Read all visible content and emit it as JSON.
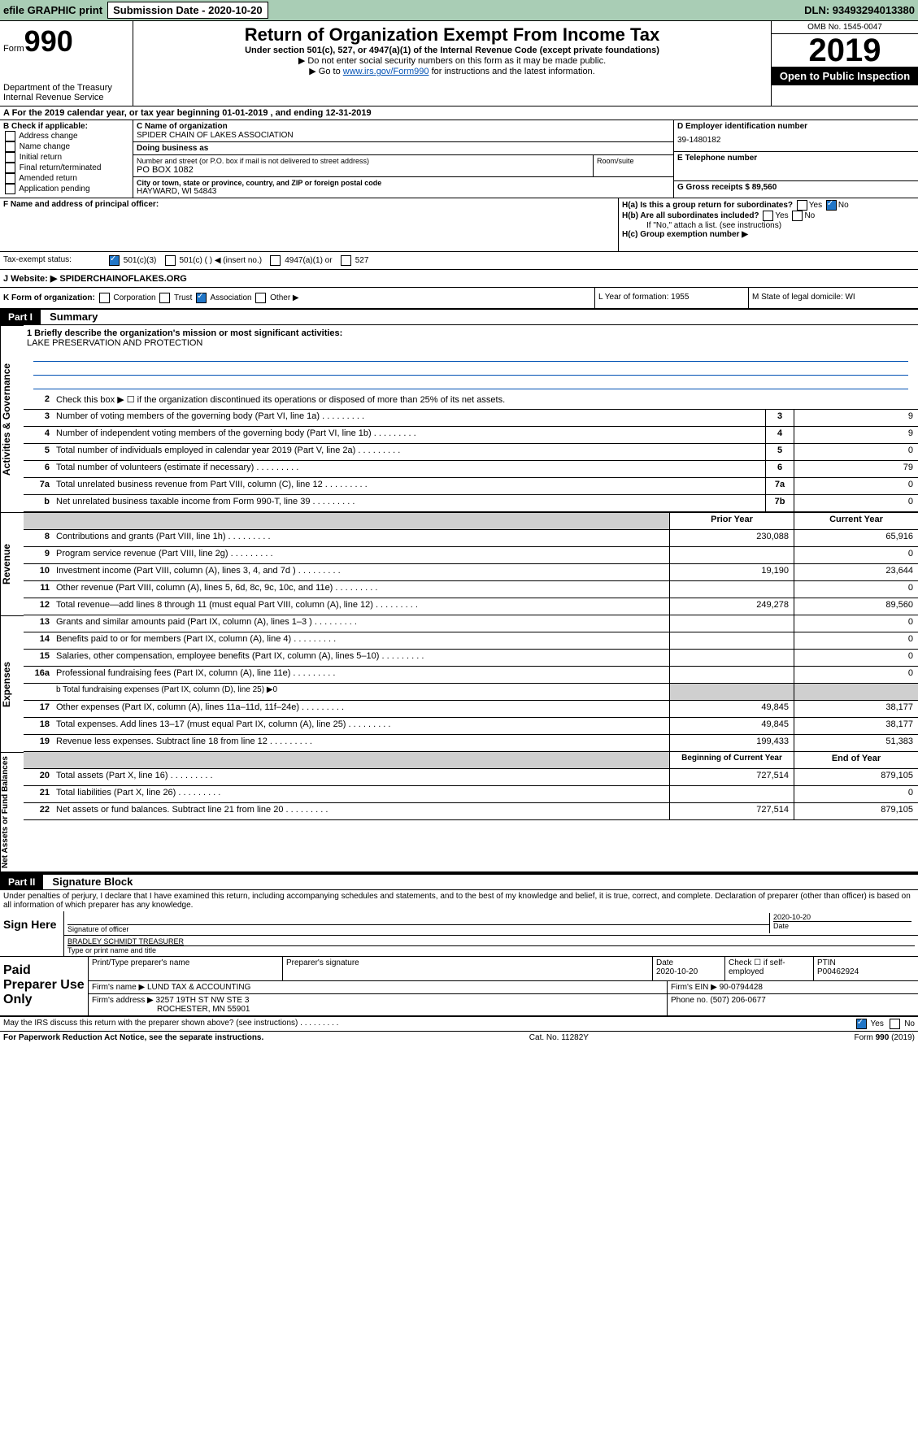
{
  "topbar": {
    "efile": "efile GRAPHIC print",
    "submission_label": "Submission Date - 2020-10-20",
    "dln_label": "DLN: 93493294013380"
  },
  "header": {
    "form_small": "Form",
    "form_number": "990",
    "dept1": "Department of the Treasury",
    "dept2": "Internal Revenue Service",
    "title": "Return of Organization Exempt From Income Tax",
    "subtitle": "Under section 501(c), 527, or 4947(a)(1) of the Internal Revenue Code (except private foundations)",
    "note1": "▶ Do not enter social security numbers on this form as it may be made public.",
    "note2_pre": "▶ Go to ",
    "note2_link": "www.irs.gov/Form990",
    "note2_post": " for instructions and the latest information.",
    "omb": "OMB No. 1545-0047",
    "year": "2019",
    "open": "Open to Public Inspection"
  },
  "row_a": "A For the 2019 calendar year, or tax year beginning 01-01-2019    , and ending 12-31-2019",
  "col_b": {
    "hdr": "B Check if applicable:",
    "items": [
      "Address change",
      "Name change",
      "Initial return",
      "Final return/terminated",
      "Amended return",
      "Application pending"
    ]
  },
  "col_c": {
    "name_lbl": "C Name of organization",
    "name_val": "SPIDER CHAIN OF LAKES ASSOCIATION",
    "dba_lbl": "Doing business as",
    "dba_val": "",
    "addr_lbl": "Number and street (or P.O. box if mail is not delivered to street address)",
    "room_lbl": "Room/suite",
    "addr_val": "PO BOX 1082",
    "city_lbl": "City or town, state or province, country, and ZIP or foreign postal code",
    "city_val": "HAYWARD, WI  54843"
  },
  "col_de": {
    "d_lbl": "D Employer identification number",
    "d_val": "39-1480182",
    "e_lbl": "E Telephone number",
    "e_val": "",
    "g_lbl": "G Gross receipts $ 89,560"
  },
  "section_f": {
    "f_lbl": "F  Name and address of principal officer:",
    "f_val": "",
    "ha": "H(a)  Is this a group return for subordinates?",
    "hb": "H(b)  Are all subordinates included?",
    "hb_note": "If \"No,\" attach a list. (see instructions)",
    "hc": "H(c)  Group exemption number ▶",
    "yes": "Yes",
    "no": "No"
  },
  "row_i": {
    "lbl": "Tax-exempt status:",
    "opt1": "501(c)(3)",
    "opt2": "501(c) (   ) ◀ (insert no.)",
    "opt3": "4947(a)(1) or",
    "opt4": "527"
  },
  "row_j": {
    "lbl": "J   Website: ▶",
    "val": "  SPIDERCHAINOFLAKES.ORG"
  },
  "row_k": {
    "left_lbl": "K Form of organization:",
    "corp": "Corporation",
    "trust": "Trust",
    "assoc": "Association",
    "other": "Other ▶",
    "l_lbl": "L Year of formation: 1955",
    "m_lbl": "M State of legal domicile: WI"
  },
  "part1": {
    "hdr": "Part I",
    "title": "Summary",
    "side_gov": "Activities & Governance",
    "side_rev": "Revenue",
    "side_exp": "Expenses",
    "side_net": "Net Assets or Fund Balances",
    "l1_lbl": "1  Briefly describe the organization's mission or most significant activities:",
    "l1_val": "LAKE PRESERVATION AND PROTECTION",
    "l2": "Check this box ▶ ☐  if the organization discontinued its operations or disposed of more than 25% of its net assets.",
    "lines_gov": [
      {
        "num": "3",
        "desc": "Number of voting members of the governing body (Part VI, line 1a)",
        "box": "3",
        "val": "9"
      },
      {
        "num": "4",
        "desc": "Number of independent voting members of the governing body (Part VI, line 1b)",
        "box": "4",
        "val": "9"
      },
      {
        "num": "5",
        "desc": "Total number of individuals employed in calendar year 2019 (Part V, line 2a)",
        "box": "5",
        "val": "0"
      },
      {
        "num": "6",
        "desc": "Total number of volunteers (estimate if necessary)",
        "box": "6",
        "val": "79"
      },
      {
        "num": "7a",
        "desc": "Total unrelated business revenue from Part VIII, column (C), line 12",
        "box": "7a",
        "val": "0"
      },
      {
        "num": "b",
        "desc": "Net unrelated business taxable income from Form 990-T, line 39",
        "box": "7b",
        "val": "0"
      }
    ],
    "hdr_prior": "Prior Year",
    "hdr_curr": "Current Year",
    "lines_rev": [
      {
        "num": "8",
        "desc": "Contributions and grants (Part VIII, line 1h)",
        "prior": "230,088",
        "curr": "65,916"
      },
      {
        "num": "9",
        "desc": "Program service revenue (Part VIII, line 2g)",
        "prior": "",
        "curr": "0"
      },
      {
        "num": "10",
        "desc": "Investment income (Part VIII, column (A), lines 3, 4, and 7d )",
        "prior": "19,190",
        "curr": "23,644"
      },
      {
        "num": "11",
        "desc": "Other revenue (Part VIII, column (A), lines 5, 6d, 8c, 9c, 10c, and 11e)",
        "prior": "",
        "curr": "0"
      },
      {
        "num": "12",
        "desc": "Total revenue—add lines 8 through 11 (must equal Part VIII, column (A), line 12)",
        "prior": "249,278",
        "curr": "89,560"
      }
    ],
    "lines_exp": [
      {
        "num": "13",
        "desc": "Grants and similar amounts paid (Part IX, column (A), lines 1–3 )",
        "prior": "",
        "curr": "0"
      },
      {
        "num": "14",
        "desc": "Benefits paid to or for members (Part IX, column (A), line 4)",
        "prior": "",
        "curr": "0"
      },
      {
        "num": "15",
        "desc": "Salaries, other compensation, employee benefits (Part IX, column (A), lines 5–10)",
        "prior": "",
        "curr": "0"
      },
      {
        "num": "16a",
        "desc": "Professional fundraising fees (Part IX, column (A), line 11e)",
        "prior": "",
        "curr": "0"
      }
    ],
    "l16b": "b   Total fundraising expenses (Part IX, column (D), line 25) ▶0",
    "lines_exp2": [
      {
        "num": "17",
        "desc": "Other expenses (Part IX, column (A), lines 11a–11d, 11f–24e)",
        "prior": "49,845",
        "curr": "38,177"
      },
      {
        "num": "18",
        "desc": "Total expenses. Add lines 13–17 (must equal Part IX, column (A), line 25)",
        "prior": "49,845",
        "curr": "38,177"
      },
      {
        "num": "19",
        "desc": "Revenue less expenses. Subtract line 18 from line 12",
        "prior": "199,433",
        "curr": "51,383"
      }
    ],
    "hdr_begin": "Beginning of Current Year",
    "hdr_end": "End of Year",
    "lines_net": [
      {
        "num": "20",
        "desc": "Total assets (Part X, line 16)",
        "prior": "727,514",
        "curr": "879,105"
      },
      {
        "num": "21",
        "desc": "Total liabilities (Part X, line 26)",
        "prior": "",
        "curr": "0"
      },
      {
        "num": "22",
        "desc": "Net assets or fund balances. Subtract line 21 from line 20",
        "prior": "727,514",
        "curr": "879,105"
      }
    ]
  },
  "part2": {
    "hdr": "Part II",
    "title": "Signature Block",
    "declaration": "Under penalties of perjury, I declare that I have examined this return, including accompanying schedules and statements, and to the best of my knowledge and belief, it is true, correct, and complete. Declaration of preparer (other than officer) is based on all information of which preparer has any knowledge.",
    "sign_here": "Sign Here",
    "sig_officer_lbl": "Signature of officer",
    "sig_date": "2020-10-20",
    "date_lbl": "Date",
    "officer_name": "BRADLEY SCHMIDT  TREASURER",
    "type_name_lbl": "Type or print name and title",
    "paid_label": "Paid Preparer Use Only",
    "p_name_lbl": "Print/Type preparer's name",
    "p_sig_lbl": "Preparer's signature",
    "p_date_lbl": "Date",
    "p_date": "2020-10-20",
    "p_check_lbl": "Check ☐ if self-employed",
    "ptin_lbl": "PTIN",
    "ptin": "P00462924",
    "firm_name_lbl": "Firm's name    ▶",
    "firm_name": "LUND TAX & ACCOUNTING",
    "firm_ein_lbl": "Firm's EIN ▶ 90-0794428",
    "firm_addr_lbl": "Firm's address ▶",
    "firm_addr1": "3257 19TH ST NW STE 3",
    "firm_addr2": "ROCHESTER, MN  55901",
    "firm_phone": "Phone no. (507) 206-0677",
    "discuss": "May the IRS discuss this return with the preparer shown above? (see instructions)",
    "yes": "Yes",
    "no": "No"
  },
  "footer": {
    "paperwork": "For Paperwork Reduction Act Notice, see the separate instructions.",
    "cat": "Cat. No. 11282Y",
    "form": "Form 990 (2019)"
  }
}
